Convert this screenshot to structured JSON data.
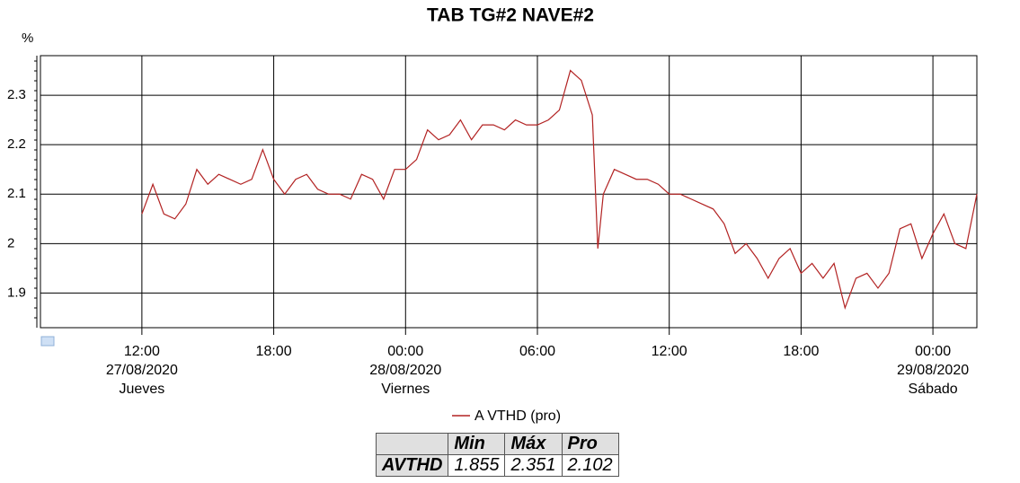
{
  "chart_data": {
    "type": "line",
    "title": "TAB TG#2 NAVE#2",
    "ylabel": "%",
    "x": [
      "2020-08-27T12:00",
      "2020-08-27T12:30",
      "2020-08-27T13:00",
      "2020-08-27T13:30",
      "2020-08-27T14:00",
      "2020-08-27T14:30",
      "2020-08-27T15:00",
      "2020-08-27T15:30",
      "2020-08-27T16:00",
      "2020-08-27T16:30",
      "2020-08-27T17:00",
      "2020-08-27T17:30",
      "2020-08-27T18:00",
      "2020-08-27T18:30",
      "2020-08-27T19:00",
      "2020-08-27T19:30",
      "2020-08-27T20:00",
      "2020-08-27T20:30",
      "2020-08-27T21:00",
      "2020-08-27T21:30",
      "2020-08-27T22:00",
      "2020-08-27T22:30",
      "2020-08-27T23:00",
      "2020-08-27T23:30",
      "2020-08-28T00:00",
      "2020-08-28T00:30",
      "2020-08-28T01:00",
      "2020-08-28T01:30",
      "2020-08-28T02:00",
      "2020-08-28T02:30",
      "2020-08-28T03:00",
      "2020-08-28T03:30",
      "2020-08-28T04:00",
      "2020-08-28T04:30",
      "2020-08-28T05:00",
      "2020-08-28T05:30",
      "2020-08-28T06:00",
      "2020-08-28T06:30",
      "2020-08-28T07:00",
      "2020-08-28T07:30",
      "2020-08-28T08:00",
      "2020-08-28T08:30",
      "2020-08-28T08:45",
      "2020-08-28T09:00",
      "2020-08-28T09:30",
      "2020-08-28T10:00",
      "2020-08-28T10:30",
      "2020-08-28T11:00",
      "2020-08-28T11:30",
      "2020-08-28T12:00",
      "2020-08-28T12:30",
      "2020-08-28T13:00",
      "2020-08-28T13:30",
      "2020-08-28T14:00",
      "2020-08-28T14:30",
      "2020-08-28T15:00",
      "2020-08-28T15:30",
      "2020-08-28T16:00",
      "2020-08-28T16:30",
      "2020-08-28T17:00",
      "2020-08-28T17:30",
      "2020-08-28T18:00",
      "2020-08-28T18:30",
      "2020-08-28T19:00",
      "2020-08-28T19:30",
      "2020-08-28T20:00",
      "2020-08-28T20:30",
      "2020-08-28T21:00",
      "2020-08-28T21:30",
      "2020-08-28T22:00",
      "2020-08-28T22:30",
      "2020-08-28T23:00",
      "2020-08-28T23:30",
      "2020-08-29T00:00",
      "2020-08-29T00:30",
      "2020-08-29T01:00",
      "2020-08-29T01:30",
      "2020-08-29T02:00"
    ],
    "series": [
      {
        "name": "A VTHD (pro)",
        "color": "#b22222",
        "values": [
          2.06,
          2.12,
          2.06,
          2.05,
          2.08,
          2.15,
          2.12,
          2.14,
          2.13,
          2.12,
          2.13,
          2.19,
          2.13,
          2.1,
          2.13,
          2.14,
          2.11,
          2.1,
          2.1,
          2.09,
          2.14,
          2.13,
          2.09,
          2.15,
          2.15,
          2.17,
          2.23,
          2.21,
          2.22,
          2.25,
          2.21,
          2.24,
          2.24,
          2.23,
          2.25,
          2.24,
          2.24,
          2.25,
          2.27,
          2.35,
          2.33,
          2.26,
          1.99,
          2.1,
          2.15,
          2.14,
          2.13,
          2.13,
          2.12,
          2.1,
          2.1,
          2.09,
          2.08,
          2.07,
          2.04,
          1.98,
          2.0,
          1.97,
          1.93,
          1.97,
          1.99,
          1.94,
          1.96,
          1.93,
          1.96,
          1.87,
          1.93,
          1.94,
          1.91,
          1.94,
          2.03,
          2.04,
          1.97,
          2.02,
          2.06,
          2.0,
          1.99,
          2.1
        ]
      }
    ],
    "xlim": [
      "2020-08-27T07:23",
      "2020-08-29T02:00"
    ],
    "xticks": [
      {
        "value": "2020-08-27T12:00",
        "label": [
          "12:00",
          "27/08/2020",
          "Jueves"
        ]
      },
      {
        "value": "2020-08-27T18:00",
        "label": [
          "18:00"
        ]
      },
      {
        "value": "2020-08-28T00:00",
        "label": [
          "00:00",
          "28/08/2020",
          "Viernes"
        ]
      },
      {
        "value": "2020-08-28T06:00",
        "label": [
          "06:00"
        ]
      },
      {
        "value": "2020-08-28T12:00",
        "label": [
          "12:00"
        ]
      },
      {
        "value": "2020-08-28T18:00",
        "label": [
          "18:00"
        ]
      },
      {
        "value": "2020-08-29T00:00",
        "label": [
          "00:00",
          "29/08/2020",
          "Sábado"
        ]
      }
    ],
    "ylim": [
      1.83,
      2.38
    ],
    "yticks": [
      1.9,
      2.0,
      2.1,
      2.2,
      2.3
    ],
    "grid": true
  },
  "summary_table": {
    "columns": [
      "Min",
      "Máx",
      "Pro"
    ],
    "rows": [
      {
        "label": "AVTHD",
        "values": [
          1.855,
          2.351,
          2.102
        ]
      }
    ]
  }
}
